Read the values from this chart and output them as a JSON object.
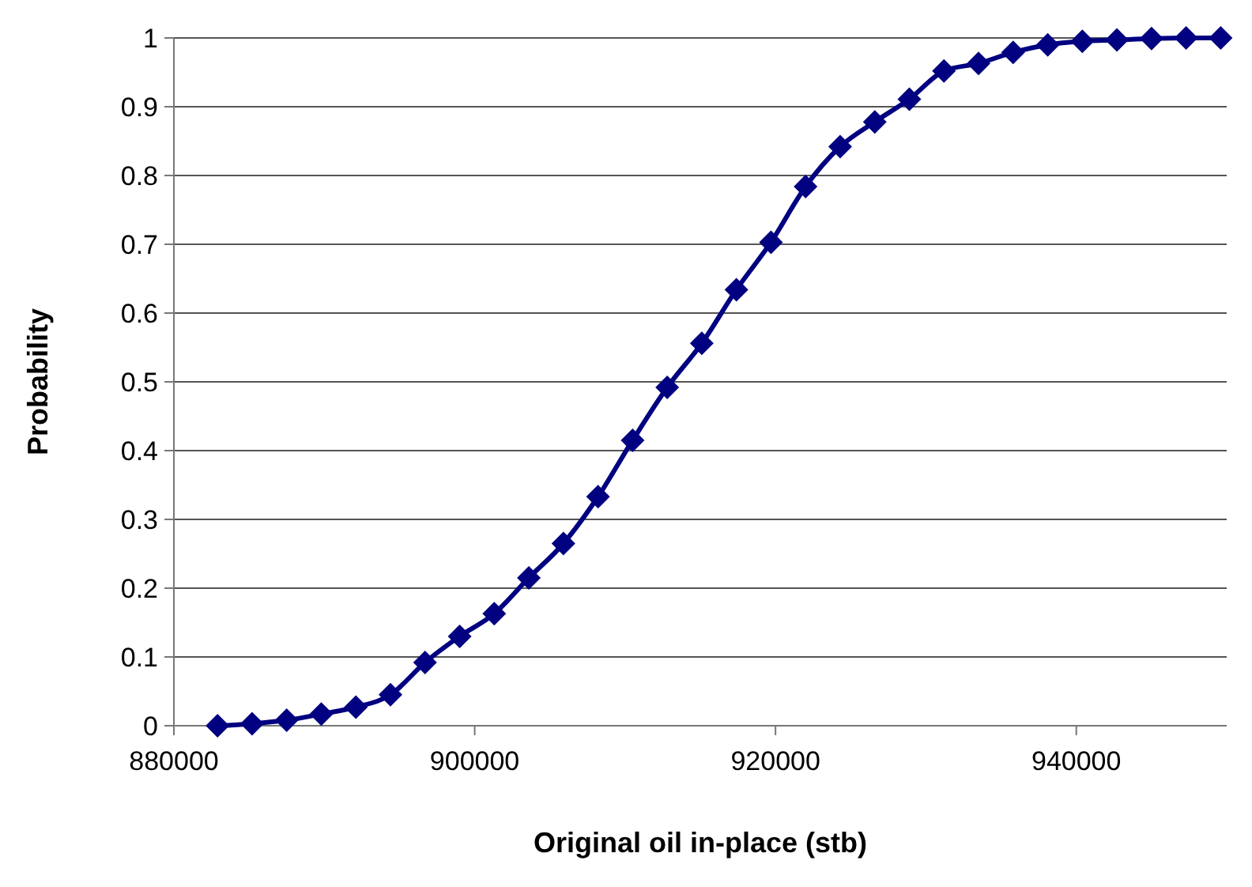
{
  "chart_data": {
    "type": "line",
    "xlabel": "Original oil in-place (stb)",
    "ylabel": "Probability",
    "x": [
      882900,
      885200,
      887500,
      889800,
      892100,
      894400,
      896700,
      899000,
      901300,
      903600,
      905900,
      908200,
      910500,
      912800,
      915100,
      917400,
      919700,
      922000,
      924300,
      926600,
      928900,
      931200,
      933500,
      935800,
      938100,
      940400,
      942700,
      945000,
      947300,
      949600
    ],
    "series": [
      {
        "color": "#000080",
        "values": [
          0,
          0.003,
          0.008,
          0.017,
          0.027,
          0.045,
          0.092,
          0.13,
          0.163,
          0.215,
          0.265,
          0.333,
          0.415,
          0.492,
          0.556,
          0.634,
          0.703,
          0.784,
          0.842,
          0.878,
          0.911,
          0.952,
          0.963,
          0.979,
          0.99,
          0.995,
          0.997,
          0.999,
          1,
          1
        ]
      }
    ],
    "xlim": [
      880000,
      950000
    ],
    "xticks": [
      880000,
      900000,
      920000,
      940000
    ],
    "ylim": [
      0,
      1
    ],
    "yticks": [
      0,
      0.1,
      0.2,
      0.3,
      0.4,
      0.5,
      0.6,
      0.7,
      0.8,
      0.9,
      1
    ],
    "grid": "y",
    "marker": "diamond",
    "line_style": "solid"
  }
}
